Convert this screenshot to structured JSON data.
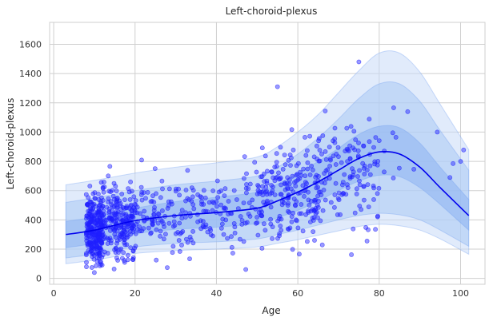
{
  "chart_data": {
    "type": "scatter",
    "title": "Left-choroid-plexus",
    "xlabel": "Age",
    "ylabel": "Left-choroid-plexus",
    "xlim": [
      -1,
      106
    ],
    "ylim": [
      -40,
      1750
    ],
    "xticks": [
      0,
      20,
      40,
      60,
      80,
      100
    ],
    "yticks": [
      0,
      200,
      400,
      600,
      800,
      1000,
      1200,
      1400,
      1600
    ],
    "grid": true,
    "colors": {
      "points": "#1f1fff",
      "curve": "#0000ee",
      "band_outer": "#c9dbf7",
      "band_mid": "#a9c8f4",
      "band_inner": "#8fb6f1",
      "band_edge": "#6f9ff0",
      "grid": "#cfcfcf",
      "frame": "#cfcfcf"
    },
    "centile_curves": {
      "x": [
        3,
        10,
        20,
        30,
        40,
        50,
        55,
        60,
        65,
        70,
        75,
        80,
        85,
        90,
        95,
        102
      ],
      "c50": [
        300,
        330,
        395,
        430,
        450,
        480,
        530,
        590,
        660,
        740,
        820,
        865,
        850,
        760,
        620,
        430
      ],
      "c25": [
        210,
        240,
        305,
        335,
        350,
        375,
        415,
        465,
        530,
        600,
        665,
        705,
        695,
        620,
        505,
        330
      ],
      "c75": [
        390,
        420,
        480,
        525,
        555,
        590,
        645,
        720,
        800,
        890,
        985,
        1040,
        1030,
        925,
        760,
        540
      ],
      "c05": [
        140,
        165,
        215,
        240,
        250,
        270,
        300,
        330,
        365,
        400,
        430,
        445,
        435,
        400,
        330,
        220
      ],
      "c95": [
        520,
        550,
        600,
        640,
        665,
        700,
        760,
        850,
        960,
        1090,
        1230,
        1330,
        1330,
        1210,
        1010,
        740
      ],
      "c01": [
        100,
        125,
        170,
        190,
        200,
        215,
        240,
        265,
        295,
        325,
        355,
        370,
        360,
        330,
        270,
        165
      ],
      "c99": [
        640,
        670,
        720,
        760,
        790,
        830,
        900,
        1000,
        1120,
        1270,
        1420,
        1540,
        1540,
        1410,
        1190,
        880
      ]
    },
    "scatter_clusters": [
      {
        "x_range": [
          8,
          12
        ],
        "count": 260,
        "y_mean": 340,
        "y_sd": 110
      },
      {
        "x_range": [
          12,
          20
        ],
        "count": 220,
        "y_mean": 380,
        "y_sd": 120
      },
      {
        "x_range": [
          20,
          35
        ],
        "count": 120,
        "y_mean": 420,
        "y_sd": 130
      },
      {
        "x_range": [
          35,
          50
        ],
        "count": 90,
        "y_mean": 460,
        "y_sd": 140
      },
      {
        "x_range": [
          50,
          65
        ],
        "count": 200,
        "y_mean": 560,
        "y_sd": 170
      },
      {
        "x_range": [
          65,
          80
        ],
        "count": 130,
        "y_mean": 700,
        "y_sd": 190
      },
      {
        "x_range": [
          80,
          101
        ],
        "count": 12,
        "y_mean": 780,
        "y_sd": 200
      }
    ],
    "outlier_points": [
      {
        "x": 55,
        "y": 1310
      },
      {
        "x": 75,
        "y": 1480
      },
      {
        "x": 10,
        "y": 40
      },
      {
        "x": 100,
        "y": 800
      },
      {
        "x": 77,
        "y": 255
      },
      {
        "x": 87,
        "y": 1140
      }
    ]
  }
}
